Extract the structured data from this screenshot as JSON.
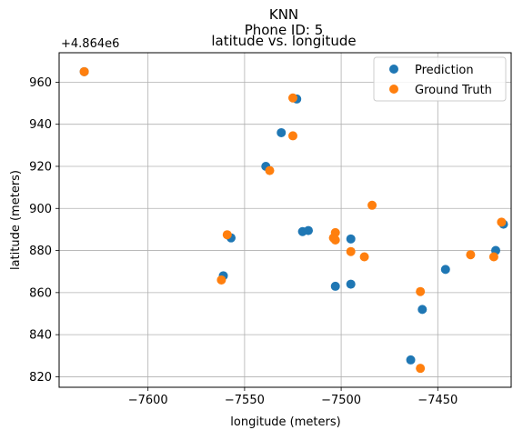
{
  "chart_data": {
    "type": "scatter",
    "suptitle": "KNN",
    "subtitle": "Phone ID: 5",
    "title": "latitude vs. longitude",
    "xlabel": "longitude (meters)",
    "ylabel": "latitude (meters)",
    "y_offset_label": "+4.864e6",
    "xlim": [
      -7646,
      -7412
    ],
    "ylim": [
      815,
      974
    ],
    "xticks": [
      -7600,
      -7550,
      -7500,
      -7450
    ],
    "xtick_labels": [
      "−7600",
      "−7550",
      "−7500",
      "−7450"
    ],
    "yticks": [
      820,
      840,
      860,
      880,
      900,
      920,
      940,
      960
    ],
    "ytick_labels": [
      "820",
      "840",
      "860",
      "880",
      "900",
      "920",
      "940",
      "960"
    ],
    "grid": true,
    "legend_position": "upper right",
    "series": [
      {
        "name": "Prediction",
        "color": "#1f77b4",
        "points": [
          [
            -7633,
            965
          ],
          [
            -7523,
            952
          ],
          [
            -7531,
            936
          ],
          [
            -7539,
            920
          ],
          [
            -7520,
            889
          ],
          [
            -7517,
            889.5
          ],
          [
            -7557,
            886
          ],
          [
            -7495,
            885.5
          ],
          [
            -7561,
            868
          ],
          [
            -7503,
            863
          ],
          [
            -7495,
            864
          ],
          [
            -7446,
            871
          ],
          [
            -7458,
            852
          ],
          [
            -7464,
            828
          ],
          [
            -7420,
            880
          ],
          [
            -7416,
            892.5
          ]
        ]
      },
      {
        "name": "Ground Truth",
        "color": "#ff7f0e",
        "points": [
          [
            -7633,
            965
          ],
          [
            -7525,
            952.5
          ],
          [
            -7525,
            934.5
          ],
          [
            -7537,
            918
          ],
          [
            -7484,
            901.5
          ],
          [
            -7559,
            887.5
          ],
          [
            -7503,
            888.5
          ],
          [
            -7504,
            886
          ],
          [
            -7503,
            885
          ],
          [
            -7495,
            879.5
          ],
          [
            -7488,
            877
          ],
          [
            -7433,
            878
          ],
          [
            -7421,
            877
          ],
          [
            -7417,
            893.5
          ],
          [
            -7562,
            866
          ],
          [
            -7459,
            860.5
          ],
          [
            -7459,
            824
          ]
        ]
      }
    ]
  }
}
